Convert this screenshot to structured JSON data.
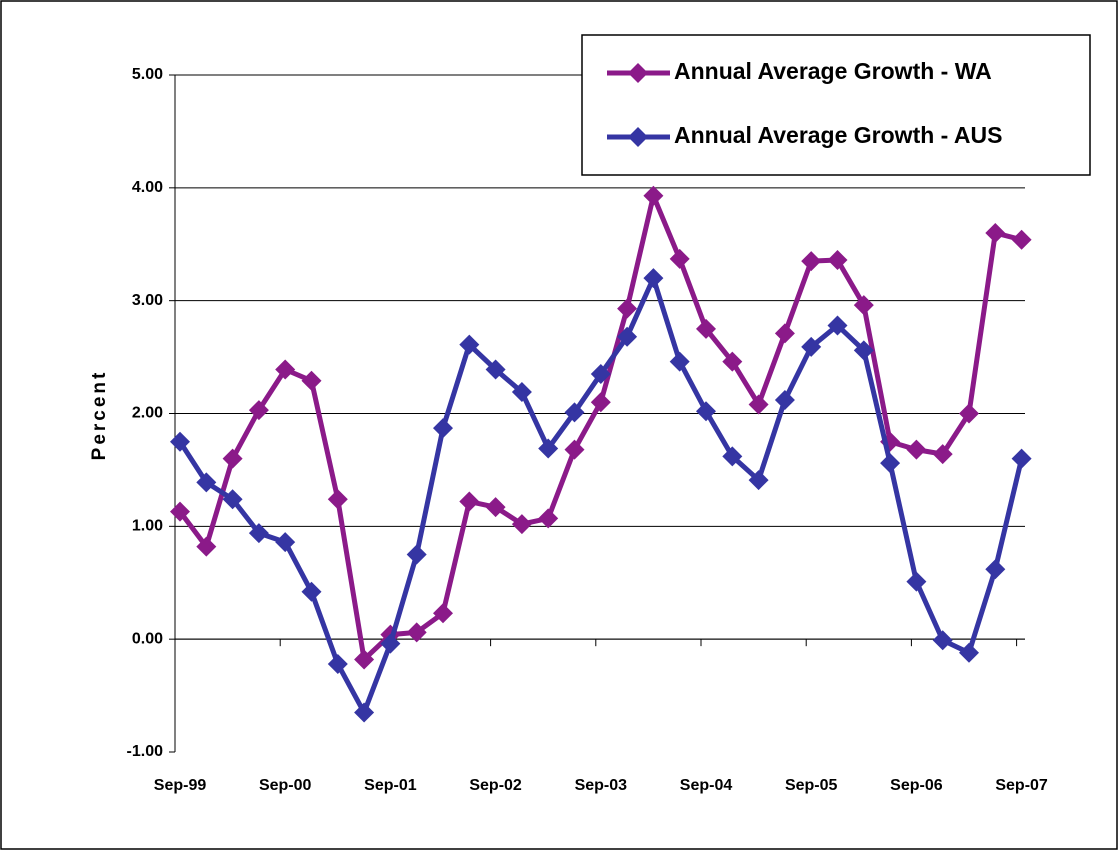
{
  "chart_data": {
    "type": "line",
    "y_label": "Percent",
    "categories": [
      "Sep-99",
      null,
      null,
      null,
      "Sep-00",
      null,
      null,
      null,
      "Sep-01",
      null,
      null,
      null,
      "Sep-02",
      null,
      null,
      null,
      "Sep-03",
      null,
      null,
      null,
      "Sep-04",
      null,
      null,
      null,
      "Sep-05",
      null,
      null,
      null,
      "Sep-06",
      null,
      null,
      null,
      "Sep-07"
    ],
    "series": [
      {
        "name": "Annual Average Growth - WA",
        "color": "#8b1a89",
        "values": [
          1.13,
          0.82,
          1.6,
          2.03,
          2.39,
          2.29,
          1.24,
          -0.18,
          0.04,
          0.06,
          0.23,
          1.22,
          1.17,
          1.02,
          1.07,
          1.68,
          2.1,
          2.93,
          3.93,
          3.37,
          2.75,
          2.46,
          2.08,
          2.71,
          3.35,
          3.36,
          2.96,
          1.75,
          1.68,
          1.64,
          2.0,
          3.6,
          3.54
        ]
      },
      {
        "name": "Annual Average Growth - AUS",
        "color": "#3535a3",
        "values": [
          1.75,
          1.39,
          1.24,
          0.94,
          0.86,
          0.42,
          -0.22,
          -0.65,
          -0.04,
          0.75,
          1.87,
          2.61,
          2.39,
          2.19,
          1.69,
          2.01,
          2.35,
          2.68,
          3.2,
          2.46,
          2.02,
          1.62,
          1.41,
          2.12,
          2.59,
          2.78,
          2.56,
          1.56,
          0.51,
          -0.01,
          -0.12,
          0.62,
          1.6
        ]
      }
    ],
    "ylim": [
      -1,
      5
    ],
    "yticks": [
      {
        "value": -1,
        "label": "-1.00"
      },
      {
        "value": 0,
        "label": "0.00"
      },
      {
        "value": 1,
        "label": "1.00"
      },
      {
        "value": 2,
        "label": "2.00"
      },
      {
        "value": 3,
        "label": "3.00"
      },
      {
        "value": 4,
        "label": "4.00"
      },
      {
        "value": 5,
        "label": "5.00"
      }
    ],
    "grid": true,
    "legend": "top-right"
  }
}
